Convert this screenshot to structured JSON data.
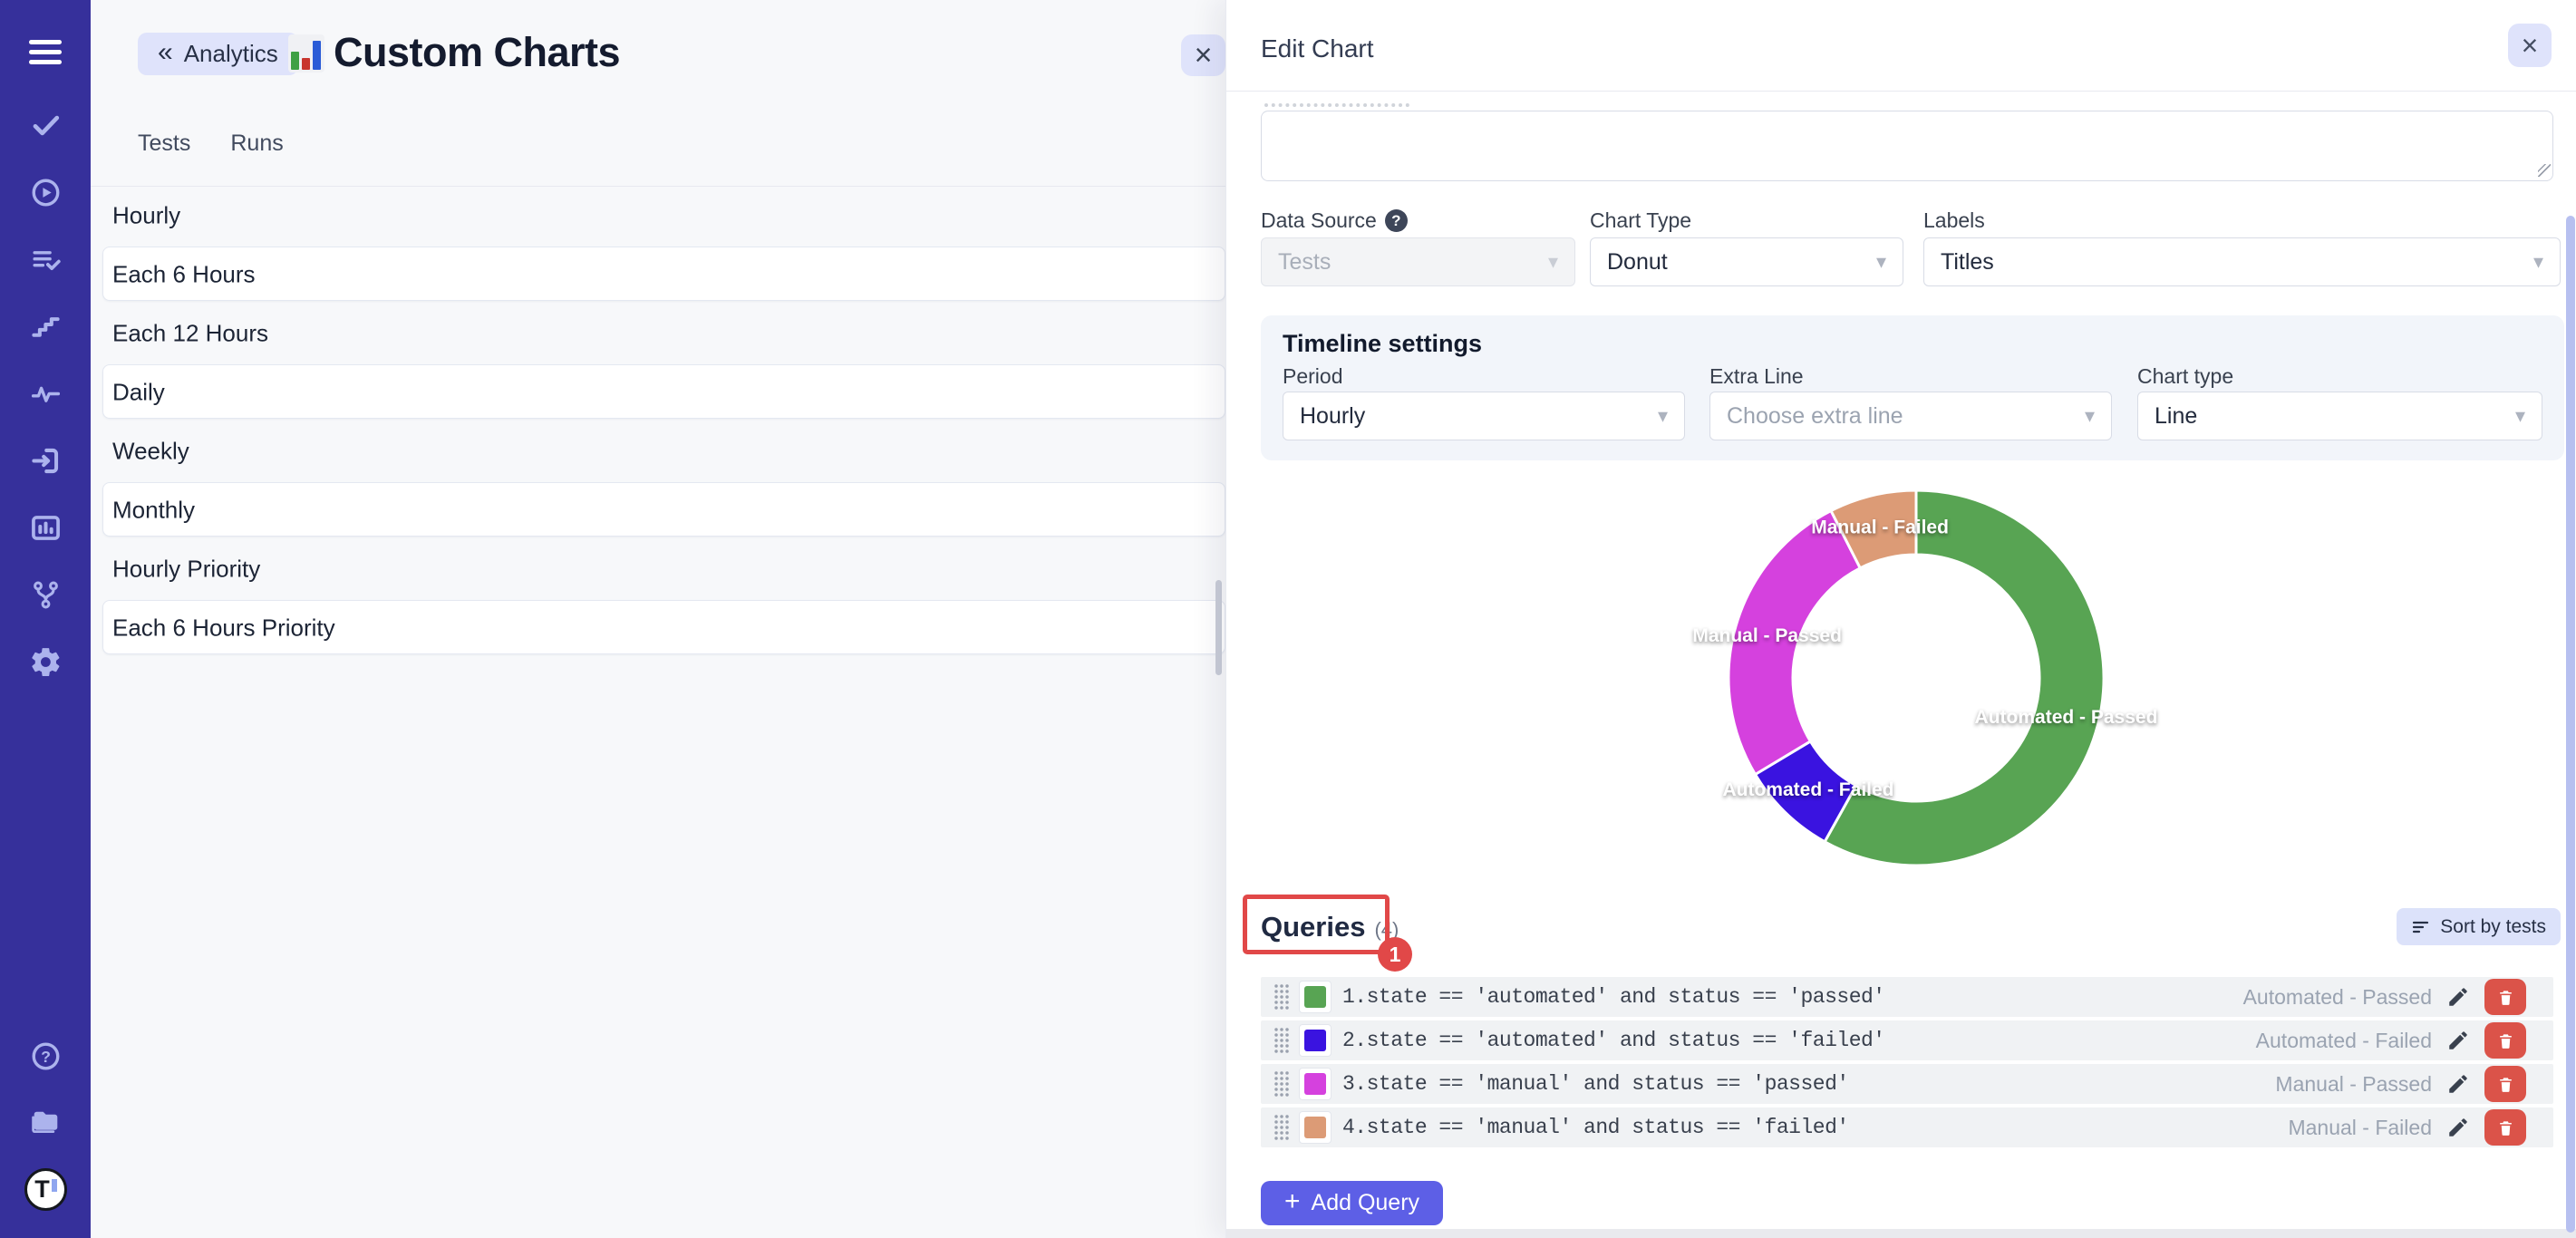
{
  "icons": {
    "chevron_down": "▾",
    "close": "×",
    "back": "«",
    "help": "?",
    "plus": "+"
  },
  "colors": {
    "accent": "#5D5FE6",
    "sidebar": "#36309B",
    "lavender": "#DFE3FB",
    "annotation_red": "#E14848",
    "delete_red": "#DB5349"
  },
  "sidebar": {
    "logo_text": "T",
    "items": [
      {
        "name": "tests",
        "icon": "check"
      },
      {
        "name": "runs",
        "icon": "play-circle"
      },
      {
        "name": "test-plans",
        "icon": "list-check"
      },
      {
        "name": "milestones",
        "icon": "steps"
      },
      {
        "name": "pulse",
        "icon": "pulse"
      },
      {
        "name": "imports",
        "icon": "sign-in"
      },
      {
        "name": "analytics",
        "icon": "bar-chart"
      },
      {
        "name": "branches",
        "icon": "branch"
      },
      {
        "name": "settings",
        "icon": "gear"
      }
    ],
    "bottom_items": [
      {
        "name": "help",
        "icon": "help-circle"
      },
      {
        "name": "projects",
        "icon": "folder"
      }
    ]
  },
  "charts_panel": {
    "back_button": "Analytics",
    "title": "Custom Charts",
    "tabs": [
      {
        "label": "Tests"
      },
      {
        "label": "Runs"
      }
    ],
    "list": [
      "Hourly",
      "Each 6 Hours",
      "Each 12 Hours",
      "Daily",
      "Weekly",
      "Monthly",
      "Hourly Priority",
      "Each 6 Hours Priority"
    ]
  },
  "edit_panel": {
    "title": "Edit Chart",
    "description_value": "",
    "data_source": {
      "label": "Data Source",
      "value": "Tests"
    },
    "chart_type": {
      "label": "Chart Type",
      "value": "Donut"
    },
    "labels_field": {
      "label": "Labels",
      "value": "Titles"
    },
    "timeline": {
      "title": "Timeline settings",
      "period": {
        "label": "Period",
        "value": "Hourly"
      },
      "extra_line": {
        "label": "Extra Line",
        "placeholder": "Choose extra line"
      },
      "chart_type": {
        "label": "Chart type",
        "value": "Line"
      }
    },
    "queries": {
      "title": "Queries",
      "count": "(4)",
      "annotation_number": "1",
      "sort_button": "Sort by tests",
      "add_button": "Add Query",
      "items": [
        {
          "color": "#58A453",
          "query": "1.state == 'automated' and status == 'passed'",
          "label": "Automated - Passed"
        },
        {
          "color": "#3A13E0",
          "query": "2.state == 'automated' and status == 'failed'",
          "label": "Automated - Failed"
        },
        {
          "color": "#D541DE",
          "query": "3.state == 'manual' and status == 'passed'",
          "label": "Manual - Passed"
        },
        {
          "color": "#DC9B76",
          "query": "4.state == 'manual' and status == 'failed'",
          "label": "Manual - Failed"
        }
      ]
    }
  },
  "chart_data": {
    "type": "donut",
    "segments": [
      {
        "label": "Automated - Passed",
        "value": 58.1,
        "color": "#58A453"
      },
      {
        "label": "Automated - Failed",
        "value": 8.3,
        "color": "#3A13E0"
      },
      {
        "label": "Manual - Passed",
        "value": 26.1,
        "color": "#D541DE"
      },
      {
        "label": "Manual - Failed",
        "value": 7.5,
        "color": "#DC9B76"
      }
    ],
    "start_angle_deg": 0,
    "direction": "clockwise",
    "labels": "on-slice",
    "legend": false
  }
}
